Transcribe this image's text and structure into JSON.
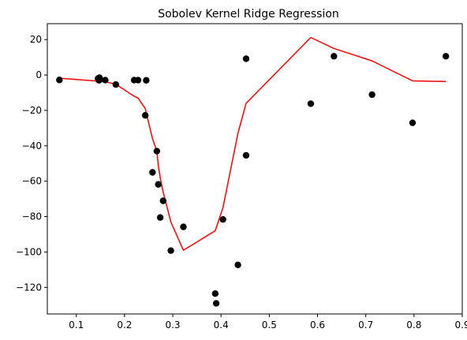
{
  "chart_data": {
    "type": "scatter",
    "title": "Sobolev Kernel Ridge Regression",
    "xlabel": "",
    "ylabel": "",
    "xlim": [
      0.04,
      0.9
    ],
    "ylim": [
      -135,
      29
    ],
    "xticks": [
      0.1,
      0.2,
      0.3,
      0.4,
      0.5,
      0.6,
      0.7,
      0.8,
      0.9
    ],
    "xtick_labels": [
      "0.1",
      "0.2",
      "0.3",
      "0.4",
      "0.5",
      "0.6",
      "0.7",
      "0.8",
      "0.9"
    ],
    "yticks": [
      20,
      0,
      -20,
      -40,
      -60,
      -80,
      -100,
      -120
    ],
    "ytick_labels": [
      "20",
      "0",
      "−20",
      "−40",
      "−60",
      "−80",
      "−100",
      "−120"
    ],
    "grid": false,
    "legend": false,
    "series": [
      {
        "kind": "scatter",
        "color": "#000000",
        "points": [
          [
            0.065,
            -2.8
          ],
          [
            0.145,
            -2.0
          ],
          [
            0.147,
            -3.0
          ],
          [
            0.148,
            -1.5
          ],
          [
            0.16,
            -2.9
          ],
          [
            0.182,
            -5.4
          ],
          [
            0.22,
            -2.9
          ],
          [
            0.228,
            -2.9
          ],
          [
            0.245,
            -3.0
          ],
          [
            0.243,
            -22.8
          ],
          [
            0.258,
            -55.0
          ],
          [
            0.267,
            -43.0
          ],
          [
            0.27,
            -61.8
          ],
          [
            0.274,
            -80.5
          ],
          [
            0.28,
            -71.1
          ],
          [
            0.296,
            -99.2
          ],
          [
            0.322,
            -85.8
          ],
          [
            0.388,
            -123.5
          ],
          [
            0.39,
            -129.0
          ],
          [
            0.404,
            -81.6
          ],
          [
            0.435,
            -107.3
          ],
          [
            0.452,
            9.2
          ],
          [
            0.452,
            -45.4
          ],
          [
            0.586,
            -16.2
          ],
          [
            0.634,
            10.6
          ],
          [
            0.713,
            -11.1
          ],
          [
            0.797,
            -27.0
          ],
          [
            0.866,
            10.6
          ]
        ]
      },
      {
        "kind": "line",
        "color": "#ff0000",
        "points": [
          [
            0.065,
            -1.8
          ],
          [
            0.145,
            -3.5
          ],
          [
            0.163,
            -4.0
          ],
          [
            0.182,
            -5.2
          ],
          [
            0.22,
            -12.0
          ],
          [
            0.228,
            -13.0
          ],
          [
            0.243,
            -19.0
          ],
          [
            0.258,
            -36.0
          ],
          [
            0.267,
            -43.0
          ],
          [
            0.27,
            -51.0
          ],
          [
            0.274,
            -58.0
          ],
          [
            0.28,
            -66.0
          ],
          [
            0.296,
            -83.0
          ],
          [
            0.322,
            -99.0
          ],
          [
            0.388,
            -88.0
          ],
          [
            0.404,
            -75.0
          ],
          [
            0.435,
            -33.0
          ],
          [
            0.452,
            -16.0
          ],
          [
            0.586,
            21.2
          ],
          [
            0.634,
            15.0
          ],
          [
            0.713,
            8.0
          ],
          [
            0.797,
            -3.3
          ],
          [
            0.866,
            -3.7
          ]
        ]
      }
    ]
  }
}
